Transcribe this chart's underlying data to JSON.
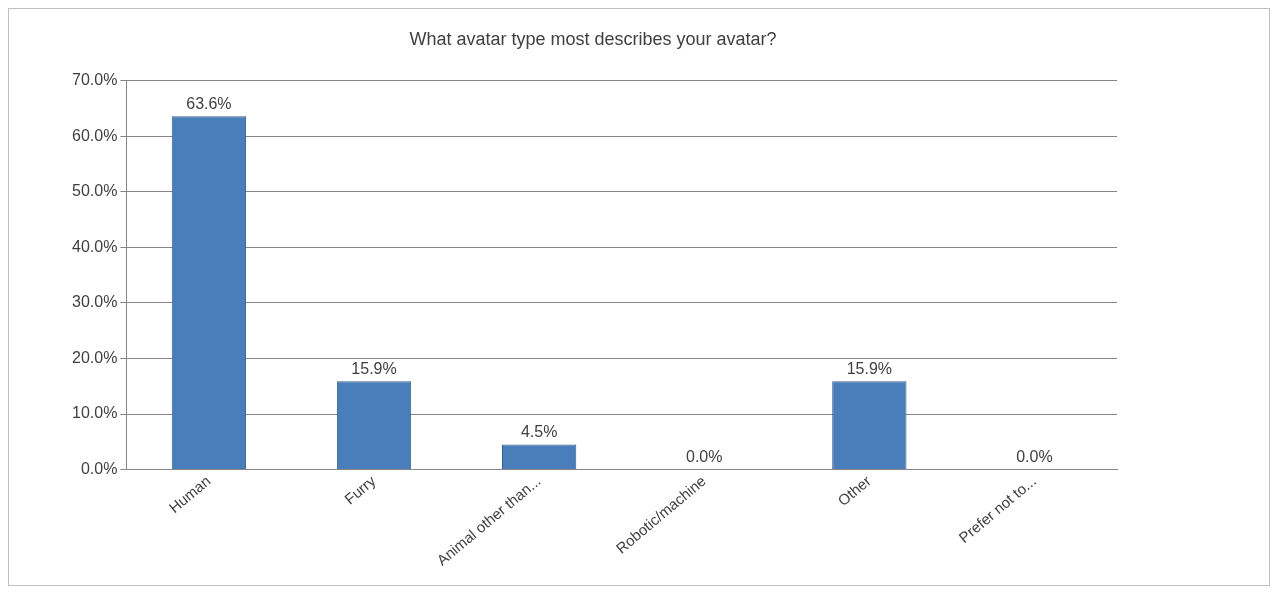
{
  "chart_data": {
    "type": "bar",
    "title": "What avatar type most describes your avatar?",
    "categories": [
      "Human",
      "Furry",
      "Animal other than...",
      "Robotic/machine",
      "Other",
      "Prefer not to..."
    ],
    "values": [
      63.6,
      15.9,
      4.5,
      0,
      15.9,
      0
    ],
    "value_labels": [
      "63.6%",
      "15.9%",
      "4.5%",
      "0.0%",
      "15.9%",
      "0.0%"
    ],
    "color": "#4a7ebb",
    "ylim": [
      0,
      70
    ],
    "yticks": [
      {
        "value": 0,
        "label": "0.0%"
      },
      {
        "value": 10,
        "label": "10.0%"
      },
      {
        "value": 20,
        "label": "20.0%"
      },
      {
        "value": 30,
        "label": "30.0%"
      },
      {
        "value": 40,
        "label": "40.0%"
      },
      {
        "value": 50,
        "label": "50.0%"
      },
      {
        "value": 60,
        "label": "60.0%"
      },
      {
        "value": 70,
        "label": "70.0%"
      }
    ],
    "grid": "y",
    "legend": false
  }
}
